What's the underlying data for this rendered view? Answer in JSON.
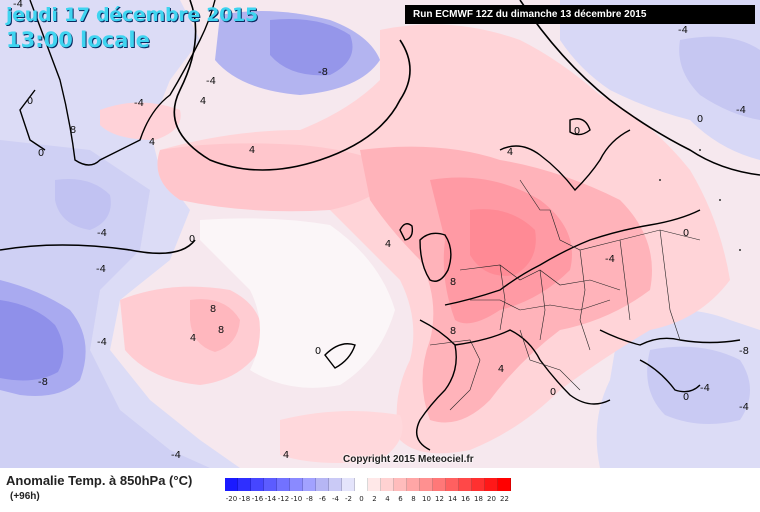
{
  "header": {
    "date": "jeudi 17 décembre 2015",
    "time": "13:00 locale",
    "run": "Run ECMWF 12Z du dimanche 13 décembre 2015"
  },
  "copyright": "Copyright 2015 Meteociel.fr",
  "legend": {
    "title": "Anomalie Temp. à 850hPa (°C)",
    "lead": "(+96h)",
    "scale_values": [
      "-20",
      "-18",
      "-16",
      "-14",
      "-12",
      "-10",
      "-8",
      "-6",
      "-4",
      "-2",
      "0",
      "2",
      "4",
      "6",
      "8",
      "10",
      "12",
      "14",
      "16",
      "18",
      "20",
      "22"
    ],
    "scale_colors": [
      "#1a1aff",
      "#2f2fff",
      "#4646ff",
      "#5c5cff",
      "#7272ff",
      "#8a8aff",
      "#a2a2ff",
      "#b6b6f4",
      "#cacaf6",
      "#e4e4fb",
      "#ffffff",
      "#ffe8e8",
      "#ffd2d2",
      "#ffbcbc",
      "#ffa6a6",
      "#ff9090",
      "#ff7878",
      "#ff6060",
      "#ff4848",
      "#ff3030",
      "#ff1818",
      "#ff0000"
    ]
  },
  "map_labels": [
    {
      "text": "-4",
      "pos": "a1"
    },
    {
      "text": "-8",
      "pos": "a2"
    },
    {
      "text": "-4",
      "pos": "a3"
    },
    {
      "text": "-4",
      "pos": "a4"
    },
    {
      "text": "0",
      "pos": "a5"
    },
    {
      "text": "8",
      "pos": "a6"
    },
    {
      "text": "0",
      "pos": "a7"
    },
    {
      "text": "4",
      "pos": "a8"
    },
    {
      "text": "4",
      "pos": "a9"
    },
    {
      "text": "0",
      "pos": "a10"
    },
    {
      "text": "-4",
      "pos": "a11"
    },
    {
      "text": "4",
      "pos": "a12"
    },
    {
      "text": "-4",
      "pos": "a13"
    },
    {
      "text": "0",
      "pos": "a14"
    },
    {
      "text": "4",
      "pos": "a15"
    },
    {
      "text": "8",
      "pos": "a16"
    },
    {
      "text": "8",
      "pos": "a17"
    },
    {
      "text": "4",
      "pos": "a18"
    },
    {
      "text": "-4",
      "pos": "a19"
    },
    {
      "text": "-8",
      "pos": "a20"
    },
    {
      "text": "-4",
      "pos": "a21"
    },
    {
      "text": "0",
      "pos": "a22"
    },
    {
      "text": "4",
      "pos": "a23"
    },
    {
      "text": "8",
      "pos": "a24"
    },
    {
      "text": "8",
      "pos": "a25"
    },
    {
      "text": "4",
      "pos": "a26"
    },
    {
      "text": "0",
      "pos": "a27"
    },
    {
      "text": "-4",
      "pos": "a28"
    },
    {
      "text": "-4",
      "pos": "a29"
    },
    {
      "text": "-4",
      "pos": "a30"
    },
    {
      "text": "-8",
      "pos": "a31"
    },
    {
      "text": "0",
      "pos": "a32"
    },
    {
      "text": "-4",
      "pos": "a33"
    },
    {
      "text": "4",
      "pos": "a34"
    },
    {
      "text": "0",
      "pos": "a35"
    },
    {
      "text": "0",
      "pos": "a36"
    },
    {
      "text": "-4",
      "pos": "a37"
    }
  ]
}
